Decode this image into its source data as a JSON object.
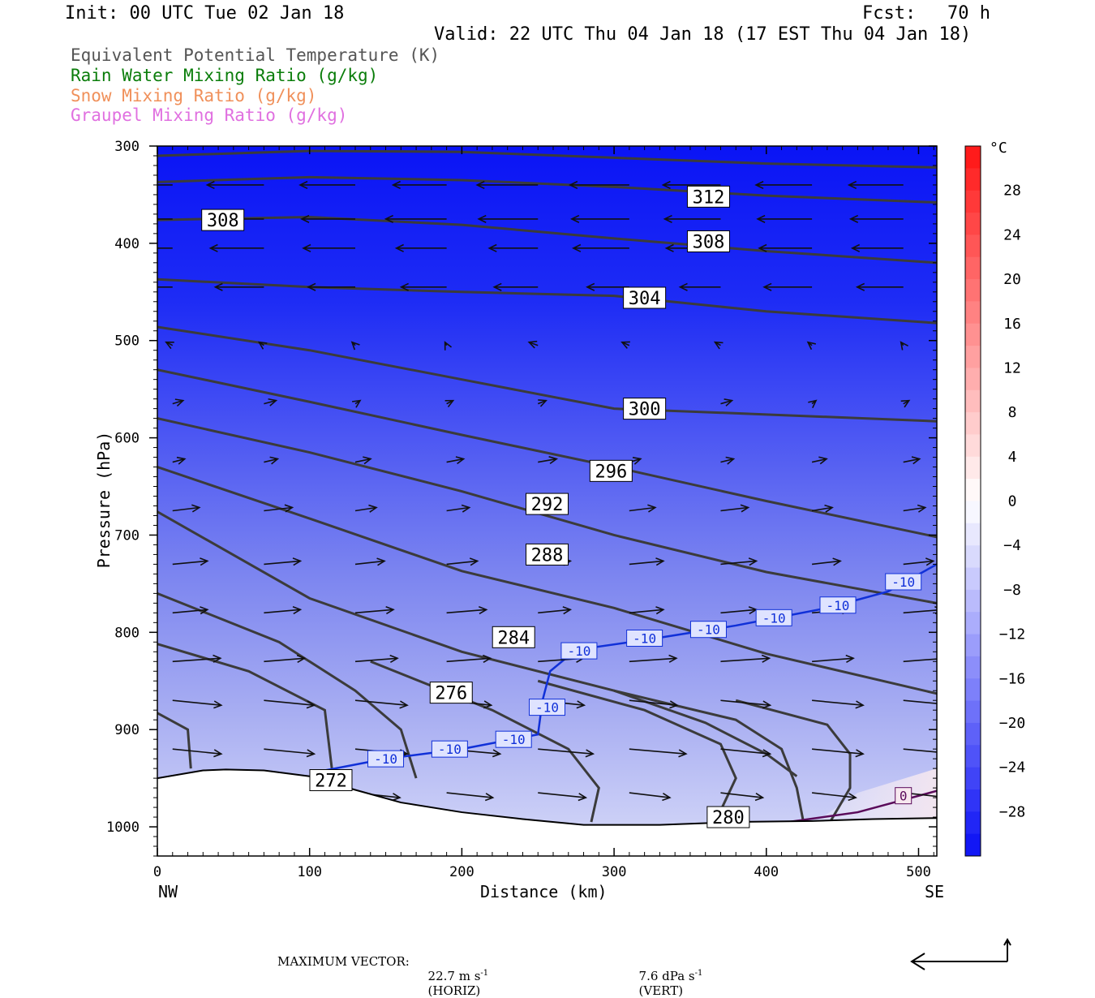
{
  "header": {
    "init": "Init: 00 UTC Tue 02 Jan 18",
    "fcst_label": "Fcst:",
    "fcst_value": "70 h",
    "valid": "Valid: 22 UTC Thu 04 Jan 18 (17 EST Thu 04 Jan 18)"
  },
  "legend": [
    {
      "label": "Equivalent Potential Temperature (K)",
      "color": "#555555"
    },
    {
      "label": "Rain Water Mixing Ratio (g/kg)",
      "color": "#0a7d0a"
    },
    {
      "label": "Snow Mixing Ratio (g/kg)",
      "color": "#f0905a"
    },
    {
      "label": "Graupel Mixing Ratio (g/kg)",
      "color": "#e070e0"
    }
  ],
  "footer": {
    "max_vector_label": "MAXIMUM VECTOR:",
    "horiz": "22.7 m s",
    "horiz_unit": "(HORIZ)",
    "vert": "7.6 dPa s",
    "vert_unit": "(VERT)",
    "exponent": "-1"
  },
  "chart_data": {
    "type": "cross-section",
    "xlabel": "Distance (km)",
    "ylabel": "Pressure (hPa)",
    "xlim": [
      0,
      512
    ],
    "ylim": [
      1030,
      300
    ],
    "x_ticks": [
      0,
      100,
      200,
      300,
      400,
      500
    ],
    "y_ticks": [
      300,
      400,
      500,
      600,
      700,
      800,
      900,
      1000
    ],
    "x_left_label": "NW",
    "x_right_label": "SE",
    "colorbar": {
      "unit": "°C",
      "labels": [
        28,
        24,
        20,
        16,
        12,
        8,
        4,
        0,
        -4,
        -8,
        -12,
        -16,
        -20,
        -24,
        -28
      ],
      "range": [
        -32,
        32
      ]
    },
    "theta_e_contours": [
      {
        "value": 312,
        "points": [
          [
            0,
            310
          ],
          [
            100,
            305
          ],
          [
            200,
            306
          ],
          [
            300,
            312
          ],
          [
            400,
            318
          ],
          [
            512,
            322
          ]
        ]
      },
      {
        "value": 308,
        "points": [
          [
            0,
            337
          ],
          [
            100,
            332
          ],
          [
            200,
            335
          ],
          [
            300,
            342
          ],
          [
            400,
            351
          ],
          [
            512,
            358
          ]
        ]
      },
      {
        "value": 308,
        "points": [
          [
            0,
            376
          ],
          [
            100,
            373
          ],
          [
            200,
            381
          ],
          [
            300,
            395
          ],
          [
            400,
            408
          ],
          [
            512,
            420
          ]
        ]
      },
      {
        "value": 304,
        "points": [
          [
            0,
            437
          ],
          [
            100,
            445
          ],
          [
            200,
            450
          ],
          [
            300,
            454
          ],
          [
            400,
            470
          ],
          [
            512,
            482
          ]
        ]
      },
      {
        "value": 300,
        "points": [
          [
            0,
            486
          ],
          [
            100,
            510
          ],
          [
            200,
            540
          ],
          [
            300,
            570
          ],
          [
            400,
            576
          ],
          [
            512,
            583
          ]
        ]
      },
      {
        "value": 296,
        "points": [
          [
            0,
            530
          ],
          [
            100,
            563
          ],
          [
            200,
            597
          ],
          [
            300,
            630
          ],
          [
            400,
            665
          ],
          [
            512,
            702
          ]
        ]
      },
      {
        "value": 292,
        "points": [
          [
            0,
            580
          ],
          [
            100,
            615
          ],
          [
            200,
            655
          ],
          [
            300,
            700
          ],
          [
            400,
            738
          ],
          [
            512,
            770
          ]
        ]
      },
      {
        "value": 288,
        "points": [
          [
            0,
            630
          ],
          [
            100,
            683
          ],
          [
            200,
            737
          ],
          [
            300,
            775
          ],
          [
            400,
            822
          ],
          [
            512,
            863
          ]
        ]
      },
      {
        "value": 284,
        "points": [
          [
            0,
            676
          ],
          [
            100,
            765
          ],
          [
            200,
            820
          ],
          [
            300,
            860
          ],
          [
            360,
            893
          ],
          [
            400,
            925
          ],
          [
            420,
            948
          ]
        ]
      }
    ],
    "theta_e_labels": [
      {
        "value": "312",
        "x": 362,
        "p": 352
      },
      {
        "value": "308",
        "x": 362,
        "p": 398
      },
      {
        "value": "308",
        "x": 43,
        "p": 376
      },
      {
        "value": "304",
        "x": 320,
        "p": 456
      },
      {
        "value": "300",
        "x": 320,
        "p": 570
      },
      {
        "value": "296",
        "x": 298,
        "p": 634
      },
      {
        "value": "292",
        "x": 256,
        "p": 668
      },
      {
        "value": "288",
        "x": 256,
        "p": 720
      },
      {
        "value": "284",
        "x": 234,
        "p": 805
      },
      {
        "value": "276",
        "x": 193,
        "p": 862
      },
      {
        "value": "272",
        "x": 114,
        "p": 952
      },
      {
        "value": "280",
        "x": 375,
        "p": 990
      }
    ],
    "isotherm_minus10": [
      [
        100,
        945
      ],
      [
        150,
        930
      ],
      [
        200,
        920
      ],
      [
        250,
        905
      ],
      [
        253,
        870
      ],
      [
        258,
        840
      ],
      [
        275,
        818
      ],
      [
        320,
        808
      ],
      [
        380,
        793
      ],
      [
        440,
        775
      ],
      [
        480,
        758
      ],
      [
        512,
        730
      ]
    ],
    "isotherm_minus10_labels": [
      {
        "x": 150,
        "p": 930
      },
      {
        "x": 192,
        "p": 920
      },
      {
        "x": 234,
        "p": 910
      },
      {
        "x": 256,
        "p": 877
      },
      {
        "x": 277,
        "p": 819
      },
      {
        "x": 320,
        "p": 806
      },
      {
        "x": 362,
        "p": 797
      },
      {
        "x": 405,
        "p": 785
      },
      {
        "x": 447,
        "p": 772
      },
      {
        "x": 490,
        "p": 748
      }
    ],
    "isotherm_zero_label": {
      "x": 490,
      "p": 968
    },
    "isotherm_label_text": "-10",
    "zero_label_text": "0",
    "terrain": [
      [
        0,
        950
      ],
      [
        30,
        942
      ],
      [
        45,
        941
      ],
      [
        70,
        942
      ],
      [
        100,
        948
      ],
      [
        130,
        962
      ],
      [
        160,
        975
      ],
      [
        200,
        985
      ],
      [
        240,
        992
      ],
      [
        280,
        998
      ],
      [
        330,
        998
      ],
      [
        380,
        995
      ],
      [
        430,
        994
      ],
      [
        470,
        992
      ],
      [
        512,
        991
      ]
    ]
  }
}
